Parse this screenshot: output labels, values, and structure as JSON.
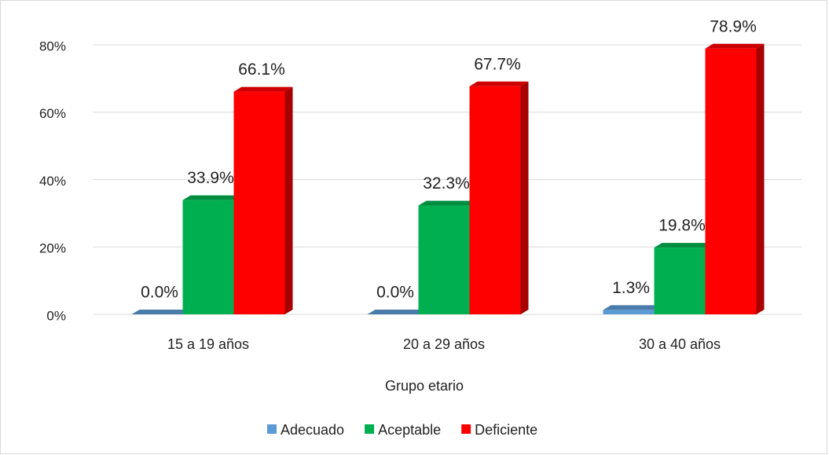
{
  "chart_data": {
    "type": "bar3d",
    "x_label": "Grupo etario",
    "categories": [
      "15 a 19 años",
      "20 a 29 años",
      "30 a 40 años"
    ],
    "series": [
      {
        "name": "Adecuado",
        "color": "#5b9bd5",
        "values": [
          0,
          0,
          1.3
        ],
        "value_labels": [
          "0.0%",
          "0.0%",
          "1.3%"
        ]
      },
      {
        "name": "Aceptable",
        "color": "#00b050",
        "values": [
          33.9,
          32.3,
          19.8
        ],
        "value_labels": [
          "33.9%",
          "32.3%",
          "19.8%"
        ]
      },
      {
        "name": "Deficiente",
        "color": "#ff0000",
        "values": [
          66.1,
          67.7,
          78.9
        ],
        "value_labels": [
          "66.1%",
          "67.7%",
          "78.9%"
        ]
      }
    ],
    "ylim": [
      0,
      80
    ],
    "yticks": [
      {
        "value": 0,
        "label": "0%"
      },
      {
        "value": 20,
        "label": "20%"
      },
      {
        "value": 40,
        "label": "40%"
      },
      {
        "value": 60,
        "label": "60%"
      },
      {
        "value": 80,
        "label": "80%"
      }
    ],
    "grid": true,
    "legend": "bottom"
  }
}
